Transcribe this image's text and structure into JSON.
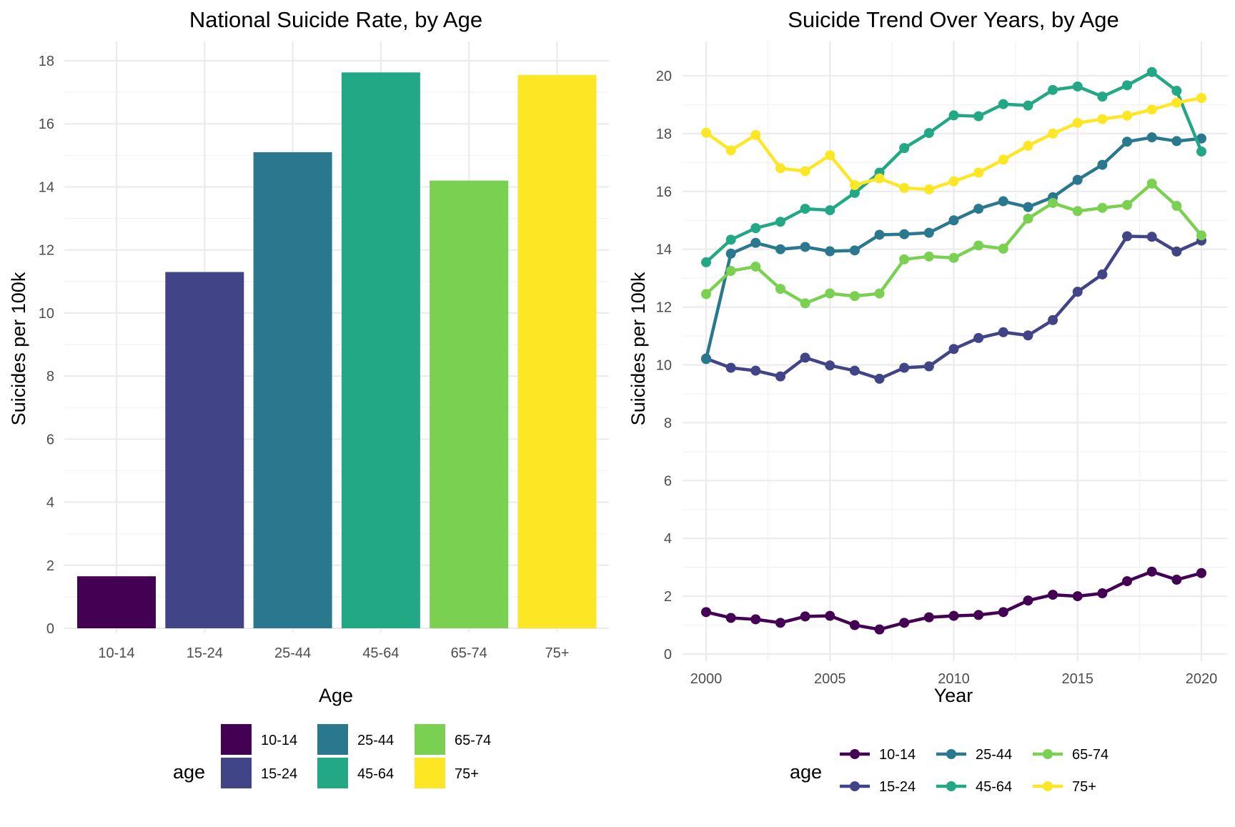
{
  "chart_data": [
    {
      "type": "bar",
      "title": "National Suicide Rate, by Age",
      "xlabel": "Age",
      "ylabel": "Suicides per 100k",
      "ylim": [
        0,
        18
      ],
      "yticks": [
        0,
        2,
        4,
        6,
        8,
        10,
        12,
        14,
        16,
        18
      ],
      "grid": true,
      "categories": [
        "10-14",
        "15-24",
        "25-44",
        "45-64",
        "65-74",
        "75+"
      ],
      "values": [
        1.65,
        11.3,
        15.1,
        17.63,
        14.2,
        17.55
      ],
      "colors": [
        "#440154",
        "#414487",
        "#2A788E",
        "#22A884",
        "#7AD151",
        "#FDE725"
      ],
      "legend": {
        "title": "age",
        "position": "bottom",
        "entries": [
          "10-14",
          "15-24",
          "25-44",
          "45-64",
          "65-74",
          "75+"
        ]
      }
    },
    {
      "type": "line",
      "title": "Suicide Trend Over Years, by Age",
      "xlabel": "Year",
      "ylabel": "Suicides per 100k",
      "xlim": [
        2000,
        2020
      ],
      "ylim": [
        0,
        20
      ],
      "xticks": [
        2000,
        2005,
        2010,
        2015,
        2020
      ],
      "yticks": [
        0,
        2,
        4,
        6,
        8,
        10,
        12,
        14,
        16,
        18,
        20
      ],
      "grid": true,
      "x": [
        2000,
        2001,
        2002,
        2003,
        2004,
        2005,
        2006,
        2007,
        2008,
        2009,
        2010,
        2011,
        2012,
        2013,
        2014,
        2015,
        2016,
        2017,
        2018,
        2019,
        2020
      ],
      "series": [
        {
          "name": "10-14",
          "color": "#440154",
          "values": [
            1.45,
            1.25,
            1.2,
            1.08,
            1.3,
            1.32,
            1.0,
            0.85,
            1.08,
            1.27,
            1.32,
            1.35,
            1.45,
            1.85,
            2.05,
            2.0,
            2.1,
            2.52,
            2.85,
            2.57,
            2.8
          ]
        },
        {
          "name": "15-24",
          "color": "#414487",
          "values": [
            10.22,
            9.9,
            9.8,
            9.6,
            10.25,
            9.98,
            9.8,
            9.52,
            9.9,
            9.95,
            10.55,
            10.93,
            11.13,
            11.02,
            11.55,
            12.53,
            13.13,
            14.45,
            14.43,
            13.92,
            14.3
          ]
        },
        {
          "name": "25-44",
          "color": "#2A788E",
          "values": [
            10.2,
            13.85,
            14.22,
            14.0,
            14.08,
            13.93,
            13.96,
            14.5,
            14.52,
            14.57,
            15.0,
            15.4,
            15.66,
            15.46,
            15.8,
            16.4,
            16.92,
            17.72,
            17.87,
            17.74,
            17.83
          ]
        },
        {
          "name": "45-64",
          "color": "#22A884",
          "values": [
            13.55,
            14.33,
            14.73,
            14.95,
            15.4,
            15.35,
            15.95,
            16.65,
            17.5,
            18.02,
            18.63,
            18.6,
            19.02,
            18.97,
            19.51,
            19.63,
            19.28,
            19.67,
            20.13,
            19.48,
            17.38
          ]
        },
        {
          "name": "65-74",
          "color": "#7AD151",
          "values": [
            12.45,
            13.25,
            13.4,
            12.63,
            12.13,
            12.47,
            12.38,
            12.47,
            13.65,
            13.75,
            13.7,
            14.13,
            14.02,
            15.06,
            15.6,
            15.32,
            15.43,
            15.53,
            16.27,
            15.5,
            14.48
          ]
        },
        {
          "name": "75+",
          "color": "#FDE725",
          "values": [
            18.03,
            17.42,
            17.95,
            16.8,
            16.7,
            17.25,
            16.22,
            16.45,
            16.12,
            16.07,
            16.35,
            16.65,
            17.1,
            17.58,
            18.0,
            18.37,
            18.5,
            18.62,
            18.83,
            19.07,
            19.23
          ]
        }
      ],
      "legend": {
        "title": "age",
        "position": "bottom",
        "entries": [
          "10-14",
          "15-24",
          "25-44",
          "45-64",
          "65-74",
          "75+"
        ]
      }
    }
  ]
}
